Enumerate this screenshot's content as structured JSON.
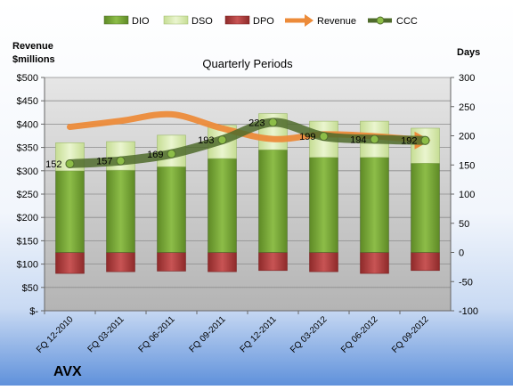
{
  "chart_data": {
    "type": "bar",
    "company": "AVX",
    "title": "Quarterly Periods",
    "left_axis_title_line1": "Revenue",
    "left_axis_title_line2": "$millions",
    "right_axis_title": "Days",
    "categories": [
      "FQ 12-2010",
      "FQ 03-2011",
      "FQ 06-2011",
      "FQ 09-2011",
      "FQ 12-2011",
      "FQ 03-2012",
      "FQ 06-2012",
      "FQ 09-2012"
    ],
    "left_axis": {
      "min": 0,
      "max": 500,
      "step": 50,
      "tick_labels": [
        "$-",
        "$50",
        "$100",
        "$150",
        "$200",
        "$250",
        "$300",
        "$350",
        "$400",
        "$450",
        "$500"
      ]
    },
    "right_axis": {
      "min": -100,
      "max": 300,
      "step": 50,
      "tick_labels": [
        "-100",
        "-50",
        "0",
        "50",
        "100",
        "150",
        "200",
        "250",
        "300"
      ]
    },
    "legend": [
      "DIO",
      "DSO",
      "DPO",
      "Revenue",
      "CCC"
    ],
    "series": [
      {
        "name": "DIO",
        "axis": "right",
        "values": [
          140,
          141,
          147,
          161,
          176,
          163,
          163,
          153
        ]
      },
      {
        "name": "DSO",
        "axis": "right",
        "values": [
          48,
          49,
          54,
          57,
          62,
          62,
          62,
          60
        ]
      },
      {
        "name": "DPO",
        "axis": "right",
        "values": [
          -36,
          -33,
          -32,
          -33,
          -31,
          -33,
          -36,
          -31
        ]
      },
      {
        "name": "Revenue",
        "axis": "left",
        "values": [
          394,
          407,
          421,
          391,
          368,
          378,
          374,
          365
        ]
      },
      {
        "name": "CCC",
        "axis": "right",
        "values": [
          152,
          157,
          169,
          193,
          223,
          199,
          194,
          192
        ]
      }
    ],
    "data_labels": [
      "152",
      "157",
      "169",
      "193",
      "223",
      "199",
      "194",
      "192"
    ],
    "colors": {
      "DIO": "#7aa43a",
      "DSO": "#d8ebb0",
      "DPO": "#b03a3a",
      "Revenue": "#ec8b3a",
      "CCC": "#4f6b2c"
    },
    "gridlines": true,
    "legend_position": "top"
  }
}
